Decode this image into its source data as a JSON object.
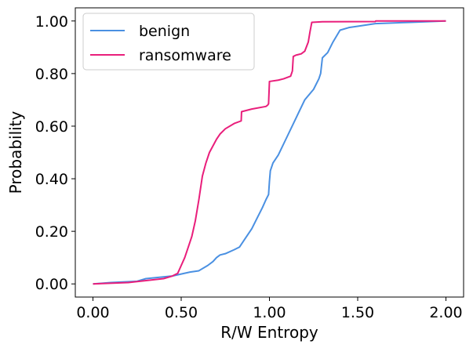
{
  "chart_data": {
    "type": "line",
    "xlabel": "R/W Entropy",
    "ylabel": "Probability",
    "xlim": [
      -0.1,
      2.1
    ],
    "ylim": [
      -0.05,
      1.05
    ],
    "x_ticks": [
      0.0,
      0.5,
      1.0,
      1.5,
      2.0
    ],
    "x_tick_labels": [
      "0.00",
      "0.50",
      "1.00",
      "1.50",
      "2.00"
    ],
    "y_ticks": [
      0.0,
      0.2,
      0.4,
      0.6,
      0.8,
      1.0
    ],
    "y_tick_labels": [
      "0.00",
      "0.20",
      "0.40",
      "0.60",
      "0.80",
      "1.00"
    ],
    "grid": false,
    "legend_position": "top-left",
    "series": [
      {
        "name": "benign",
        "color": "#4a90e2",
        "x": [
          0.0,
          0.1,
          0.25,
          0.3,
          0.45,
          0.55,
          0.6,
          0.65,
          0.68,
          0.7,
          0.72,
          0.75,
          0.8,
          0.83,
          0.86,
          0.9,
          0.93,
          0.96,
          0.98,
          0.995,
          1.0,
          1.005,
          1.02,
          1.05,
          1.1,
          1.15,
          1.2,
          1.25,
          1.28,
          1.29,
          1.3,
          1.33,
          1.36,
          1.4,
          1.45,
          1.5,
          1.6,
          1.8,
          2.0
        ],
        "y": [
          0.0,
          0.005,
          0.01,
          0.02,
          0.03,
          0.045,
          0.05,
          0.07,
          0.085,
          0.1,
          0.11,
          0.115,
          0.13,
          0.14,
          0.17,
          0.21,
          0.25,
          0.29,
          0.32,
          0.34,
          0.39,
          0.43,
          0.46,
          0.49,
          0.56,
          0.63,
          0.7,
          0.74,
          0.78,
          0.8,
          0.86,
          0.88,
          0.92,
          0.965,
          0.975,
          0.98,
          0.99,
          0.995,
          1.0
        ]
      },
      {
        "name": "ransomware",
        "color": "#e91e7b",
        "x": [
          0.0,
          0.2,
          0.4,
          0.45,
          0.48,
          0.5,
          0.52,
          0.54,
          0.56,
          0.58,
          0.6,
          0.62,
          0.64,
          0.66,
          0.7,
          0.72,
          0.75,
          0.8,
          0.84,
          0.842,
          0.9,
          0.98,
          0.99,
          0.995,
          1.0,
          1.05,
          1.08,
          1.12,
          1.13,
          1.135,
          1.15,
          1.18,
          1.2,
          1.22,
          1.23,
          1.24,
          1.3,
          1.6,
          1.602,
          2.0
        ],
        "y": [
          0.0,
          0.005,
          0.02,
          0.03,
          0.04,
          0.07,
          0.1,
          0.14,
          0.18,
          0.24,
          0.32,
          0.41,
          0.46,
          0.5,
          0.55,
          0.57,
          0.59,
          0.61,
          0.62,
          0.655,
          0.665,
          0.675,
          0.68,
          0.685,
          0.77,
          0.775,
          0.78,
          0.79,
          0.81,
          0.865,
          0.87,
          0.875,
          0.885,
          0.92,
          0.96,
          0.995,
          0.997,
          0.998,
          1.0,
          1.0
        ]
      }
    ]
  }
}
